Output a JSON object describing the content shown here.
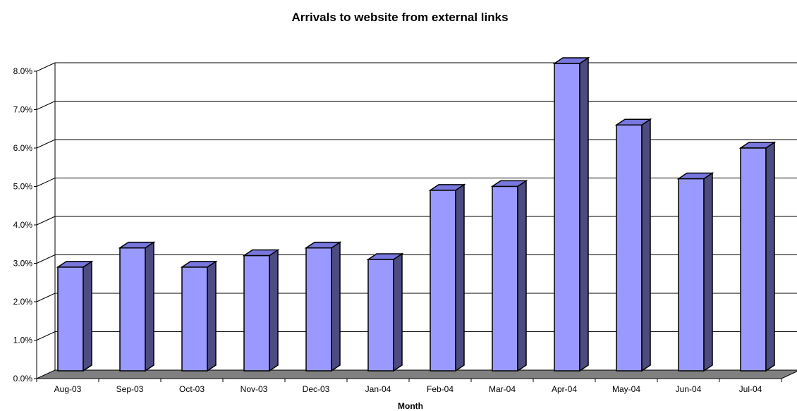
{
  "chart_data": {
    "type": "bar",
    "title": "Arrivals to website from external links",
    "xlabel": "Month",
    "ylabel": "",
    "categories": [
      "Aug-03",
      "Sep-03",
      "Oct-03",
      "Nov-03",
      "Dec-03",
      "Jan-04",
      "Feb-04",
      "Mar-04",
      "Apr-04",
      "May-04",
      "Jun-04",
      "Jul-04"
    ],
    "values": [
      2.7,
      3.2,
      2.7,
      3.0,
      3.2,
      2.9,
      4.7,
      4.8,
      8.0,
      6.4,
      5.0,
      5.8
    ],
    "yticks": [
      "0.0%",
      "1.0%",
      "2.0%",
      "3.0%",
      "4.0%",
      "5.0%",
      "6.0%",
      "7.0%",
      "8.0%"
    ],
    "ylim": [
      0,
      8
    ],
    "grid": true,
    "style": "3d-column",
    "colors": {
      "bar_front": "#9999ff",
      "bar_top": "#7777dd",
      "bar_side": "#4c4c80",
      "floor": "#808080",
      "gridline": "#000000",
      "background": "#ffffff"
    }
  }
}
